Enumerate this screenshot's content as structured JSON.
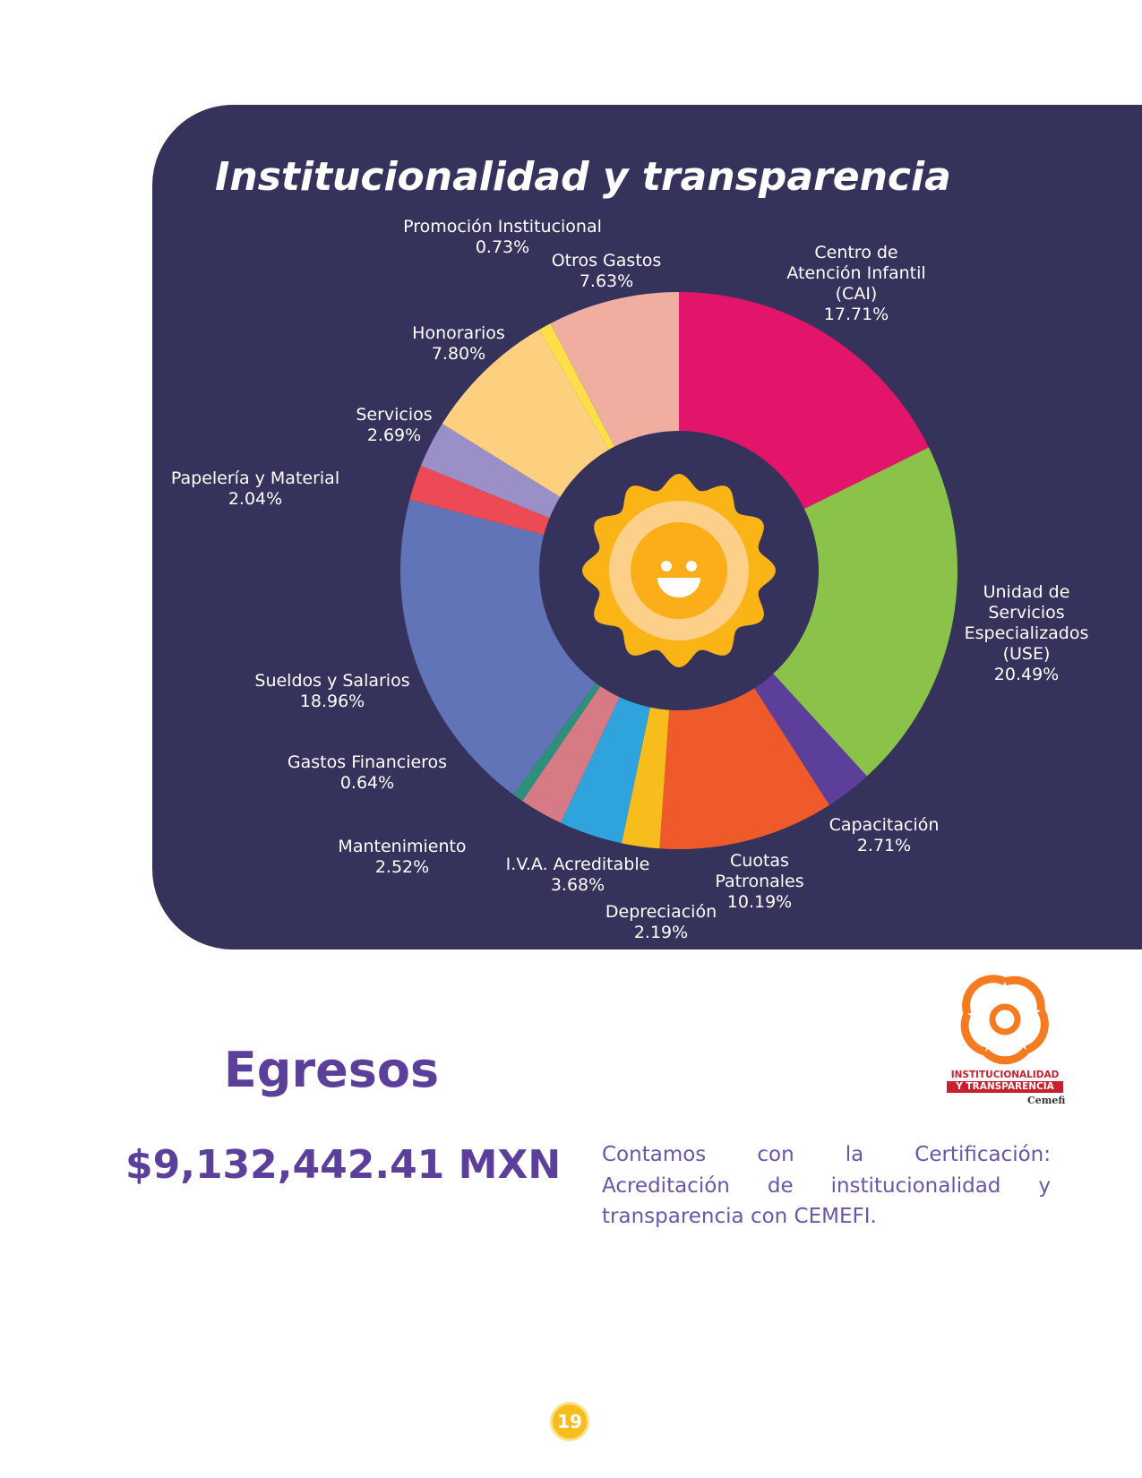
{
  "chart_data": {
    "type": "donut",
    "title": "Institucionalidad y transparencia",
    "categories": [
      "Centro de\nAtención Infantil\n(CAI)",
      "Unidad de\nServicios\nEspecializados\n(USE)",
      "Capacitación",
      "Cuotas\nPatronales",
      "Depreciación",
      "I.V.A. Acreditable",
      "Mantenimiento",
      "Gastos Financieros",
      "Sueldos y Salarios",
      "Papelería y Material",
      "Servicios",
      "Honorarios",
      "Promoción Institucional",
      "Otros Gastos"
    ],
    "values": [
      17.71,
      20.49,
      2.71,
      10.19,
      2.19,
      3.68,
      2.52,
      0.64,
      18.96,
      2.04,
      2.69,
      7.8,
      0.73,
      7.63
    ],
    "value_labels": [
      "17.71%",
      "20.49%",
      "2.71%",
      "10.19%",
      "2.19%",
      "3.68%",
      "2.52%",
      "0.64%",
      "18.96%",
      "2.04%",
      "2.69%",
      "7.80%",
      "0.73%",
      "7.63%"
    ],
    "colors": [
      "#e3156b",
      "#8bc34a",
      "#5b3f9a",
      "#ef5a2a",
      "#f7bd1d",
      "#2fa3db",
      "#d67a85",
      "#2e8f7a",
      "#6174b8",
      "#ec4a55",
      "#9a8fc6",
      "#fdd07f",
      "#fbe04a",
      "#efaea0"
    ]
  },
  "summary": {
    "heading": "Egresos",
    "amount": "$9,132,442.41 MXN",
    "text": "Contamos con la Certificación: Acreditación de institucionalidad y transparencia con CEMEFI."
  },
  "logo": {
    "line1": "INSTITUCIONALIDAD",
    "line2": "Y TRANSPARENCIA",
    "brand": "Cemefi"
  },
  "page_number": "19"
}
